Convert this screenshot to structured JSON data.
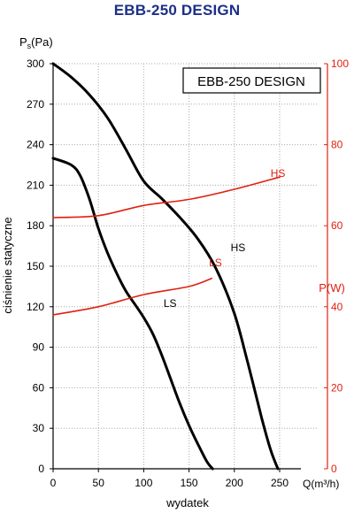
{
  "header": {
    "title": "EBB-250 DESIGN"
  },
  "chart_data": {
    "type": "line",
    "title": "EBB-250 DESIGN",
    "legend_box": "EBB-250 DESIGN",
    "legend_position": "top-right",
    "grid": true,
    "xlabel": "wydatek",
    "x_unit_label": "Q(m³/h)",
    "xlim": [
      0,
      250
    ],
    "x_ticks": [
      "0",
      "50",
      "100",
      "150",
      "200",
      "250"
    ],
    "ylabel": "ciśnienie statyczne",
    "y_unit_label": "Ps(Pa)",
    "ylim": [
      0,
      300
    ],
    "y_ticks": [
      "0",
      "30",
      "60",
      "90",
      "120",
      "150",
      "180",
      "210",
      "240",
      "270",
      "300"
    ],
    "y2label": "P(W)",
    "y2lim": [
      0,
      100
    ],
    "y2_ticks": [
      "0",
      "20",
      "40",
      "60",
      "80",
      "100"
    ],
    "colors": {
      "pressure": "#000000",
      "power": "#e02010",
      "axis_right": "#e02010"
    },
    "series": [
      {
        "name": "HS",
        "axis": "left",
        "x": [
          0,
          20,
          40,
          60,
          80,
          100,
          120,
          140,
          160,
          180,
          200,
          215,
          230,
          240,
          248
        ],
        "values": [
          300,
          290,
          277,
          260,
          237,
          213,
          200,
          186,
          170,
          148,
          115,
          78,
          38,
          14,
          0
        ]
      },
      {
        "name": "LS",
        "axis": "left",
        "x": [
          0,
          20,
          30,
          40,
          50,
          60,
          70,
          80,
          90,
          100,
          110,
          120,
          130,
          140,
          150,
          160,
          170,
          176
        ],
        "values": [
          230,
          225,
          217,
          200,
          178,
          160,
          145,
          132,
          122,
          112,
          100,
          84,
          66,
          48,
          32,
          18,
          5,
          0
        ]
      },
      {
        "name": "HS",
        "axis": "right",
        "x": [
          0,
          50,
          100,
          150,
          200,
          250
        ],
        "values": [
          62,
          62.5,
          65,
          66.5,
          69,
          72
        ]
      },
      {
        "name": "LS",
        "axis": "right",
        "x": [
          0,
          50,
          100,
          150,
          175
        ],
        "values": [
          38,
          40,
          43,
          45,
          47
        ]
      }
    ]
  }
}
